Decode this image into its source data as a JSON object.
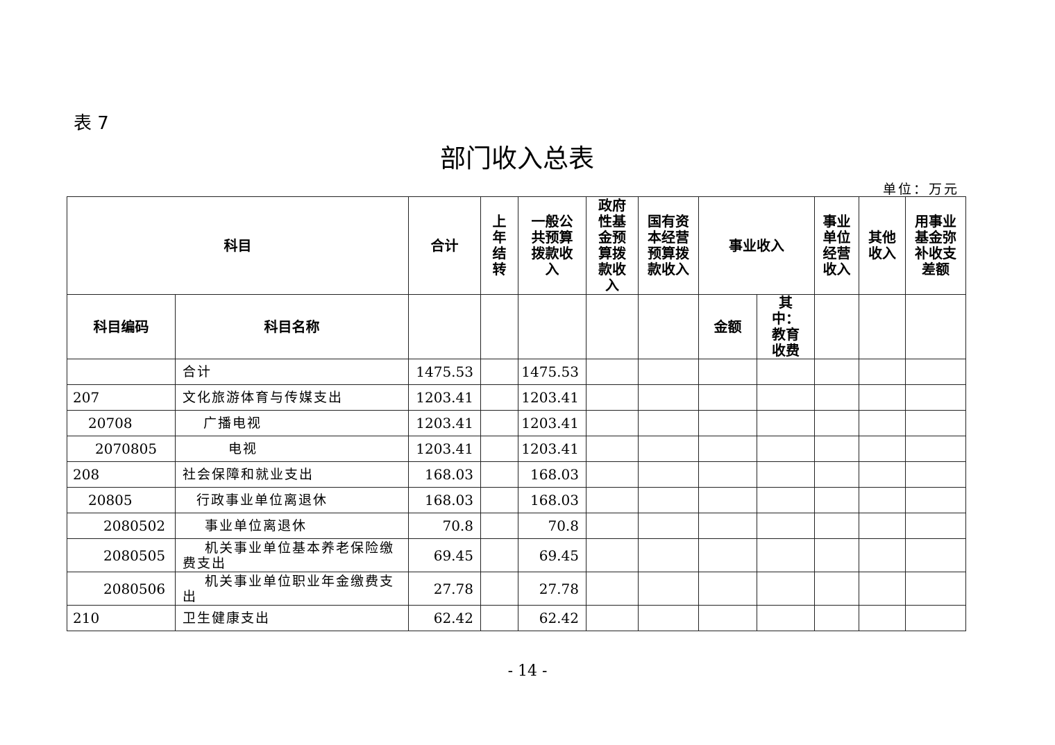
{
  "doc": {
    "table_label": "表 7",
    "title": "部门收入总表",
    "unit": "单位：万元",
    "page_number": "- 14 -"
  },
  "header": {
    "subject": "科目",
    "total": "合计",
    "carryover": "上年结转",
    "general_budget": "一般公共预算拨款收入",
    "gov_fund": "政府性基金预算拨款收入",
    "state_capital": "国有资本经营预算拨款收入",
    "business_income": "事业收入",
    "unit_operating": "事业单位经营收入",
    "other_income": "其他收入",
    "fund_offset": "用事业基金弥补收支差额",
    "code": "科目编码",
    "name": "科目名称",
    "amount": "金额",
    "edu_fee": "其中：教育收费"
  },
  "rows": [
    {
      "code": "",
      "name": "合计",
      "total": "1475.53",
      "general": "1475.53"
    },
    {
      "code": "207",
      "name": "文化旅游体育与传媒支出",
      "total": "1203.41",
      "general": "1203.41"
    },
    {
      "code": "20708",
      "name": "广播电视",
      "total": "1203.41",
      "general": "1203.41"
    },
    {
      "code": "2070805",
      "name": "电视",
      "total": "1203.41",
      "general": "1203.41"
    },
    {
      "code": "208",
      "name": "社会保障和就业支出",
      "total": "168.03",
      "general": "168.03"
    },
    {
      "code": "20805",
      "name": "行政事业单位离退休",
      "total": "168.03",
      "general": "168.03"
    },
    {
      "code": "2080502",
      "name": "事业单位离退休",
      "total": "70.8",
      "general": "70.8"
    },
    {
      "code": "2080505",
      "name": "机关事业单位基本养老保险缴费支出",
      "total": "69.45",
      "general": "69.45"
    },
    {
      "code": "2080506",
      "name": "机关事业单位职业年金缴费支出",
      "total": "27.78",
      "general": "27.78"
    },
    {
      "code": "210",
      "name": "卫生健康支出",
      "total": "62.42",
      "general": "62.42"
    }
  ]
}
